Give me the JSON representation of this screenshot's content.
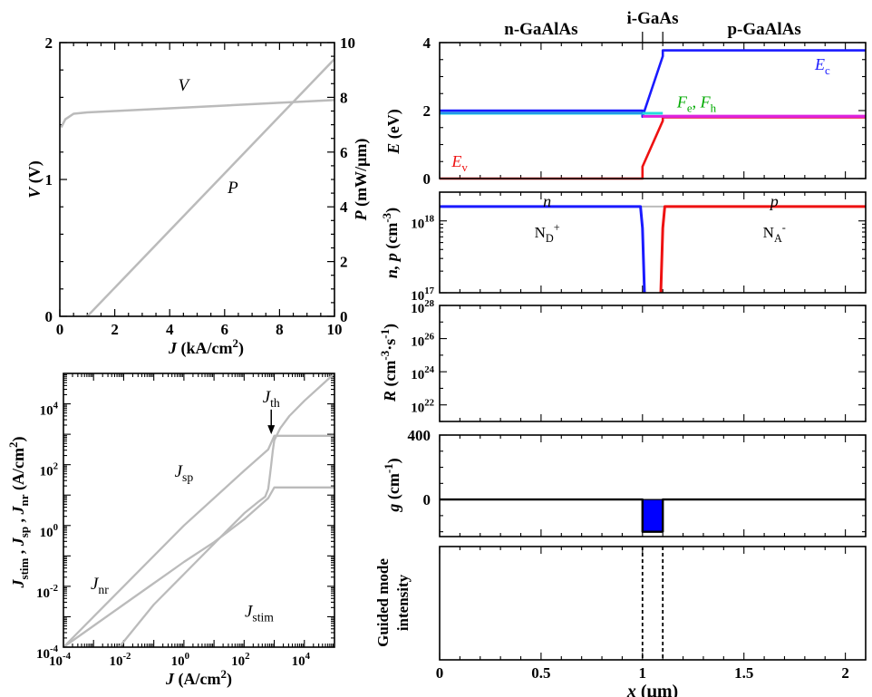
{
  "colors": {
    "curve": "#bbbbbb",
    "cband": "#1a1aff",
    "vband": "#ee1111",
    "fermi_e": "#22dddd",
    "fermi_h": "#dd22dd",
    "fermi_label": "#00aa00",
    "gain_fill": "#0000ff"
  },
  "chart_data": [
    {
      "type": "line",
      "id": "vp",
      "title": "",
      "xlabel_sym": "J",
      "xlabel_unit": "(kA/cm",
      "xlabel_sup": "2",
      "xlabel_tail": ")",
      "ylabel_left_sym": "V",
      "ylabel_left_unit": "(V)",
      "ylabel_right_sym": "P",
      "ylabel_right_unit": "(mW/μm)",
      "xlim": [
        0,
        10
      ],
      "ylim_left": [
        0,
        2
      ],
      "ylim_right": [
        0,
        10
      ],
      "xticks": [
        "0",
        "2",
        "4",
        "6",
        "8",
        "10"
      ],
      "yticks_left": [
        "0",
        "1",
        "2"
      ],
      "yticks_right": [
        "0",
        "2",
        "4",
        "6",
        "8",
        "10"
      ],
      "series": [
        {
          "name": "V",
          "axis": "left",
          "x": [
            0.05,
            0.2,
            0.5,
            1,
            2,
            4,
            6,
            8,
            10
          ],
          "y": [
            1.38,
            1.44,
            1.48,
            1.49,
            1.5,
            1.52,
            1.54,
            1.56,
            1.58
          ]
        },
        {
          "name": "P",
          "axis": "right",
          "x": [
            1.0,
            10
          ],
          "y": [
            0,
            9.4
          ]
        }
      ],
      "annotations": [
        {
          "text": "V",
          "x": 4.5,
          "y": 1.65,
          "axis": "left"
        },
        {
          "text": "P",
          "x": 6.3,
          "y": 4.5,
          "axis": "right"
        }
      ]
    },
    {
      "type": "line",
      "id": "currents",
      "log": true,
      "xlabel_sym": "J",
      "xlabel_unit": "(A/cm",
      "xlabel_sup": "2",
      "xlabel_tail": ")",
      "ylabel": "J_stim , J_sp , J_nr   (A/cm^2)",
      "xlim_exp": [
        -4,
        5
      ],
      "ylim_exp": [
        -4,
        5
      ],
      "xticks_exp": [
        "-4",
        "-2",
        "0",
        "2",
        "4"
      ],
      "yticks_exp": [
        "-4",
        "-2",
        "0",
        "2",
        "4"
      ],
      "tick_base": "10",
      "series": [
        {
          "name": "J_sp",
          "x_exp": [
            -4,
            -3,
            -2,
            -1,
            -0.5,
            0,
            1,
            2,
            2.8,
            3,
            3.3,
            3.5,
            5
          ],
          "y_exp": [
            -4,
            -3,
            -2,
            -1,
            -0.5,
            0,
            0.9,
            1.8,
            2.5,
            2.95,
            2.95,
            2.95,
            2.95
          ]
        },
        {
          "name": "J_nr",
          "x_exp": [
            -4,
            -3,
            -2,
            -1,
            -0.5,
            0,
            1,
            2,
            2.8,
            3,
            3.3,
            5
          ],
          "y_exp": [
            -4,
            -3.3,
            -2.6,
            -1.9,
            -1.55,
            -1.2,
            -0.55,
            0.2,
            0.9,
            1.25,
            1.25,
            1.25
          ]
        },
        {
          "name": "J_stim",
          "x_exp": [
            -2.15,
            -1,
            0,
            1,
            1.5,
            2,
            2.5,
            2.7,
            2.8,
            2.85,
            2.9,
            2.95,
            3,
            3.2,
            3.5,
            4,
            4.5,
            5
          ],
          "y_exp": [
            -4,
            -2.6,
            -1.6,
            -0.6,
            -0.1,
            0.4,
            0.8,
            0.95,
            1.2,
            1.6,
            2.0,
            2.45,
            2.8,
            3.2,
            3.6,
            4.1,
            4.55,
            5
          ]
        }
      ],
      "annotations": [
        {
          "text": "J",
          "sub": "sp",
          "x_exp": 0.0,
          "y_exp": 1.6
        },
        {
          "text": "J",
          "sub": "nr",
          "x_exp": -2.8,
          "y_exp": -2.1
        },
        {
          "text": "J",
          "sub": "stim",
          "x_exp": 2.5,
          "y_exp": -3.0
        },
        {
          "text": "J",
          "sub": "th",
          "x_exp": 2.9,
          "y_exp": 4.05,
          "arrow_to_y_exp": 3.0
        }
      ]
    },
    {
      "type": "line",
      "id": "bands",
      "panel": "E",
      "region_labels": [
        "n-GaAlAs",
        "i-GaAs",
        "p-GaAlAs"
      ],
      "xlim": [
        0,
        2.1
      ],
      "ylim": [
        0,
        4
      ],
      "yticks": [
        "0",
        "2",
        "4"
      ],
      "ylabel_sym": "E",
      "ylabel_unit": "(eV)",
      "series": [
        {
          "name": "E_c",
          "x": [
            0,
            1.0,
            1.0,
            1.1,
            1.1,
            2.1
          ],
          "y": [
            2.0,
            2.0,
            1.82,
            3.6,
            3.77,
            3.77
          ]
        },
        {
          "name": "E_v",
          "x": [
            0,
            1.0,
            1.0,
            1.1,
            1.1,
            2.1
          ],
          "y": [
            0,
            0,
            0.35,
            1.7,
            1.8,
            1.8
          ]
        },
        {
          "name": "F_e",
          "x": [
            0,
            1.1
          ],
          "y": [
            1.92,
            1.92
          ]
        },
        {
          "name": "F_h",
          "x": [
            1.0,
            2.1
          ],
          "y": [
            1.83,
            1.83
          ]
        }
      ],
      "labels": {
        "Ec": "E",
        "Ec_sub": "c",
        "Ev": "E",
        "Ev_sub": "v",
        "Fe": "F",
        "Fe_sub": "e",
        "Fh": "F",
        "Fh_sub": "h",
        "sep": ", "
      }
    },
    {
      "type": "line",
      "id": "carriers",
      "panel": "n,p",
      "log": true,
      "xlim": [
        0,
        2.1
      ],
      "ylim_exp": [
        17,
        18.4
      ],
      "yticks_exp": [
        "17",
        "18"
      ],
      "tick_base": "10",
      "ylabel": "n, p (cm^-3)",
      "series": [
        {
          "name": "n",
          "x": [
            0,
            0.99,
            1.0,
            1.01
          ],
          "y_exp": [
            18.2,
            18.2,
            17.9,
            17.0
          ]
        },
        {
          "name": "p",
          "x": [
            1.09,
            1.1,
            1.11,
            2.1
          ],
          "y_exp": [
            17.0,
            17.9,
            18.2,
            18.2
          ]
        }
      ],
      "labels": {
        "n": "n",
        "p": "p",
        "ND": "N",
        "ND_sub": "D",
        "ND_sup": "+",
        "NA": "N",
        "NA_sub": "A",
        "NA_sup": "-"
      }
    },
    {
      "type": "line",
      "id": "recomb",
      "panel": "R",
      "log": true,
      "xlim": [
        0,
        2.1
      ],
      "ylim_exp": [
        21,
        28
      ],
      "yticks_exp": [
        "22",
        "24",
        "26",
        "28"
      ],
      "tick_base": "10",
      "ylabel": "R (cm^-3·s^-1)",
      "series": []
    },
    {
      "type": "area",
      "id": "gain",
      "panel": "g",
      "xlim": [
        0,
        2.1
      ],
      "ylim": [
        -230,
        400
      ],
      "yticks": [
        "0",
        "400"
      ],
      "ylabel_sym": "g",
      "ylabel_unit": "(cm",
      "ylabel_sup": "-1",
      "ylabel_tail": ")",
      "series": [
        {
          "name": "g",
          "x": [
            0,
            1.0,
            1.0,
            1.1,
            1.1,
            2.1
          ],
          "y": [
            0,
            0,
            -200,
            -200,
            0,
            0
          ]
        }
      ]
    },
    {
      "type": "line",
      "id": "mode",
      "panel": "intensity",
      "xlim": [
        0,
        2.1
      ],
      "xticks": [
        "0",
        "0.5",
        "1",
        "1.5",
        "2"
      ],
      "xlabel": "x (μm)",
      "ylabel_line1": "Guided mode",
      "ylabel_line2": "intensity",
      "markers_x": [
        1.0,
        1.1
      ],
      "series": []
    }
  ]
}
